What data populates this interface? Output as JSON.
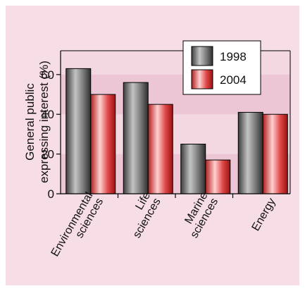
{
  "chart_data": {
    "type": "bar",
    "categories": [
      [
        "Environmental",
        "sciences"
      ],
      [
        "Life",
        "sciences"
      ],
      [
        "Marine",
        "sciences"
      ],
      [
        "Energy"
      ]
    ],
    "series": [
      {
        "name": "1998",
        "values": [
          63,
          56,
          25,
          41
        ],
        "color": "#6f6f6f"
      },
      {
        "name": "2004",
        "values": [
          50,
          45,
          17,
          40
        ],
        "color": "#d93a3a"
      }
    ],
    "ylabel": [
      "General public",
      "expressing interest (%)"
    ],
    "ylim": [
      0,
      72
    ],
    "yticks": [
      0,
      20,
      40,
      60
    ],
    "grid": "alternating horizontal bands",
    "legend": "top-right",
    "colors": {
      "background": "#f6dde6",
      "band_dark": "#ecc6d4",
      "band_light": "#f3d8e2",
      "axis": "#000000"
    }
  }
}
